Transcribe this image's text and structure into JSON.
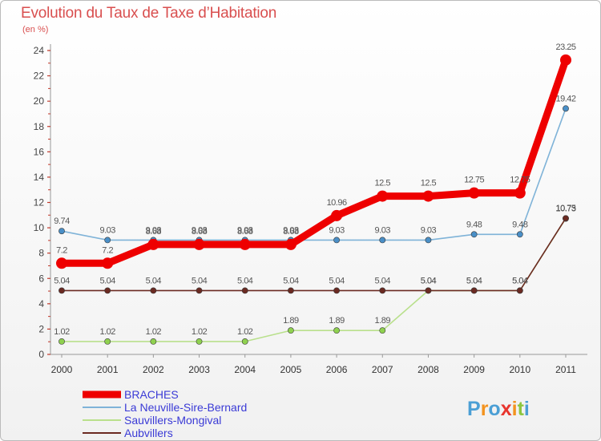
{
  "chart_data": {
    "type": "line",
    "title": "Evolution du Taux de Taxe d’Habitation",
    "subtitle": "(en %)",
    "xlabel": "",
    "ylabel": "",
    "categories": [
      "2000",
      "2001",
      "2002",
      "2003",
      "2004",
      "2005",
      "2006",
      "2007",
      "2008",
      "2009",
      "2010",
      "2011"
    ],
    "ylim": [
      0,
      24
    ],
    "yticks": [
      "0",
      "2",
      "4",
      "6",
      "8",
      "10",
      "12",
      "14",
      "16",
      "18",
      "20",
      "22",
      "24"
    ],
    "legend_position": "bottom-left",
    "series": [
      {
        "name": "La Neuville-Sire-Bernard",
        "color": "#7fb3d8",
        "marker_color": "#4a8fc7",
        "values": [
          9.74,
          9.03,
          9.03,
          9.03,
          9.03,
          9.03,
          9.03,
          9.03,
          9.03,
          9.48,
          9.48,
          19.42
        ],
        "labels": [
          "9.74",
          "9.03",
          "9.03",
          "9.03",
          "9.03",
          "9.03",
          "9.03",
          "9.03",
          "9.03",
          "9.48",
          "9.48",
          "19.42"
        ]
      },
      {
        "name": "Sauvillers-Mongival",
        "color": "#b9e08c",
        "marker_color": "#8fd14f",
        "values": [
          1.02,
          1.02,
          1.02,
          1.02,
          1.02,
          1.89,
          1.89,
          1.89,
          5.04,
          5.04,
          5.04,
          10.73
        ],
        "labels": [
          "1.02",
          "1.02",
          "1.02",
          "1.02",
          "1.02",
          "1.89",
          "1.89",
          "1.89",
          "5.04",
          "5.04",
          "5.04",
          "10.73"
        ]
      },
      {
        "name": "Aubvillers",
        "color": "#6b2a22",
        "marker_color": "#6b2a22",
        "values": [
          5.04,
          5.04,
          5.04,
          5.04,
          5.04,
          5.04,
          5.04,
          5.04,
          5.04,
          5.04,
          5.04,
          10.75
        ],
        "labels": [
          "5.04",
          "5.04",
          "5.04",
          "5.04",
          "5.04",
          "5.04",
          "5.04",
          "5.04",
          "5.04",
          "5.04",
          "5.04",
          "10.75"
        ]
      },
      {
        "name": "BRACHES",
        "color": "#ee0000",
        "marker_color": "#ee0000",
        "values": [
          7.2,
          7.2,
          8.68,
          8.68,
          8.68,
          8.68,
          10.96,
          12.5,
          12.5,
          12.75,
          12.75,
          23.25
        ],
        "labels": [
          "7.2",
          "7.2",
          "8.68",
          "8.68",
          "8.68",
          "8.68",
          "10.96",
          "12.5",
          "12.5",
          "12.75",
          "12.75",
          "23.25"
        ]
      }
    ],
    "legend": [
      "BRACHES",
      "La Neuville-Sire-Bernard",
      "Sauvillers-Mongival",
      "Aubvillers"
    ]
  },
  "branding": {
    "logo_text": "Proxiti",
    "letter_colors": [
      "#4b9fd5",
      "#f3931f",
      "#4b9fd5",
      "#e8352e",
      "#f3931f",
      "#8cc63f",
      "#4b9fd5"
    ]
  }
}
